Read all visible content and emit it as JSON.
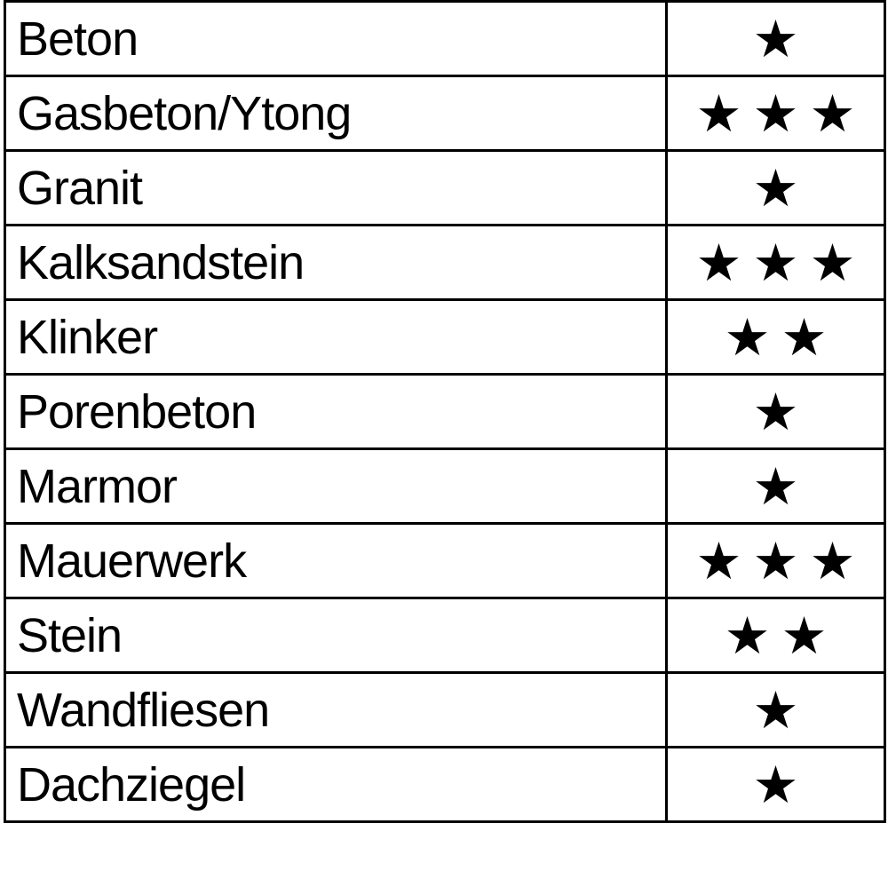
{
  "rows": [
    {
      "material": "Beton",
      "stars": 1
    },
    {
      "material": "Gasbeton/Ytong",
      "stars": 3
    },
    {
      "material": "Granit",
      "stars": 1
    },
    {
      "material": "Kalksandstein",
      "stars": 3
    },
    {
      "material": "Klinker",
      "stars": 2
    },
    {
      "material": "Porenbeton",
      "stars": 1
    },
    {
      "material": "Marmor",
      "stars": 1
    },
    {
      "material": "Mauerwerk",
      "stars": 3
    },
    {
      "material": "Stein",
      "stars": 2
    },
    {
      "material": "Wandfliesen",
      "stars": 1
    },
    {
      "material": "Dachziegel",
      "stars": 1
    }
  ],
  "rating_max": 3,
  "star_icon": "star-icon"
}
